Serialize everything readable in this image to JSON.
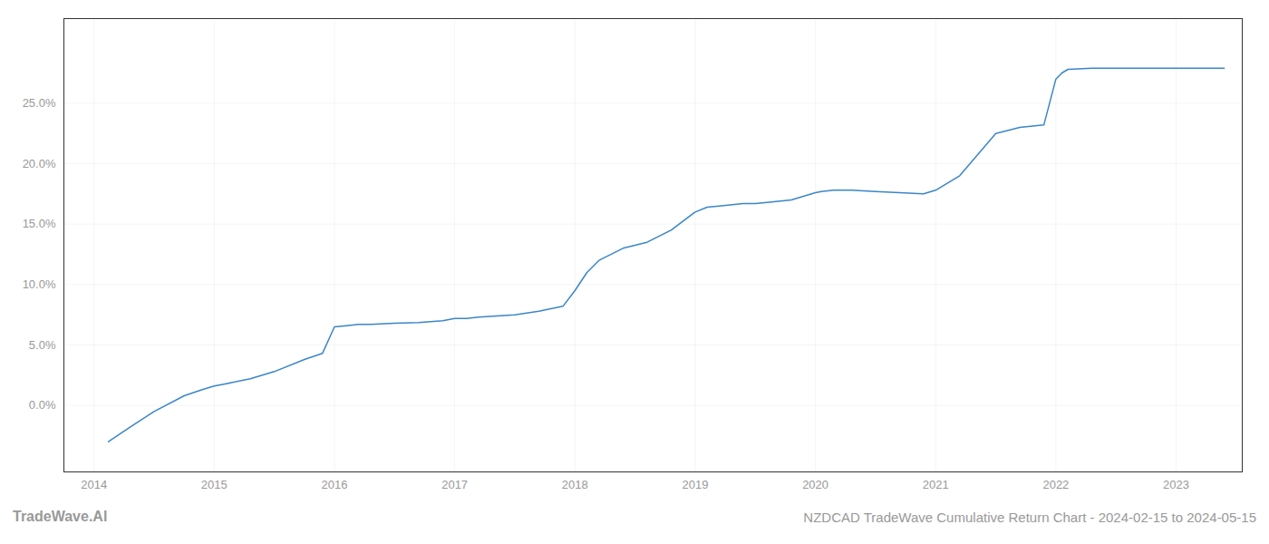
{
  "chart_data": {
    "type": "line",
    "title": "NZDCAD TradeWave Cumulative Return Chart - 2024-02-15 to 2024-05-15",
    "annotations": [
      "TradeWave.AI"
    ],
    "x": [
      2014.12,
      2014.3,
      2014.5,
      2014.75,
      2014.9,
      2015.0,
      2015.1,
      2015.3,
      2015.5,
      2015.75,
      2015.9,
      2016.0,
      2016.1,
      2016.2,
      2016.3,
      2016.5,
      2016.7,
      2016.9,
      2017.0,
      2017.1,
      2017.2,
      2017.5,
      2017.7,
      2017.9,
      2018.0,
      2018.1,
      2018.2,
      2018.4,
      2018.6,
      2018.8,
      2019.0,
      2019.1,
      2019.2,
      2019.4,
      2019.5,
      2019.6,
      2019.8,
      2020.0,
      2020.05,
      2020.15,
      2020.3,
      2020.5,
      2020.7,
      2020.9,
      2021.0,
      2021.2,
      2021.5,
      2021.7,
      2021.9,
      2022.0,
      2022.05,
      2022.1,
      2022.3,
      2022.5,
      2022.7,
      2023.0,
      2023.2,
      2023.4
    ],
    "values": [
      -3.0,
      -1.8,
      -0.5,
      0.8,
      1.3,
      1.6,
      1.8,
      2.2,
      2.8,
      3.8,
      4.3,
      6.5,
      6.6,
      6.7,
      6.7,
      6.8,
      6.85,
      7.0,
      7.2,
      7.2,
      7.3,
      7.5,
      7.8,
      8.2,
      9.5,
      11.0,
      12.0,
      13.0,
      13.5,
      14.5,
      16.0,
      16.4,
      16.5,
      16.7,
      16.7,
      16.8,
      17.0,
      17.6,
      17.7,
      17.8,
      17.8,
      17.7,
      17.6,
      17.5,
      17.8,
      19.0,
      22.5,
      23.0,
      23.2,
      27.0,
      27.5,
      27.8,
      27.9,
      27.9,
      27.9,
      27.9,
      27.9,
      27.9
    ],
    "color": "#3a86c8",
    "xlim": [
      2013.75,
      2023.55
    ],
    "xticks": [
      2014,
      2015,
      2016,
      2017,
      2018,
      2019,
      2020,
      2021,
      2022,
      2023
    ],
    "ylim": [
      -5.5,
      32
    ],
    "yticks": [
      {
        "value": 0.0,
        "label": "0.0%"
      },
      {
        "value": 5.0,
        "label": "5.0%"
      },
      {
        "value": 10.0,
        "label": "10.0%"
      },
      {
        "value": 15.0,
        "label": "15.0%"
      },
      {
        "value": 20.0,
        "label": "20.0%"
      },
      {
        "value": 25.0,
        "label": "25.0%"
      }
    ],
    "grid": true
  }
}
